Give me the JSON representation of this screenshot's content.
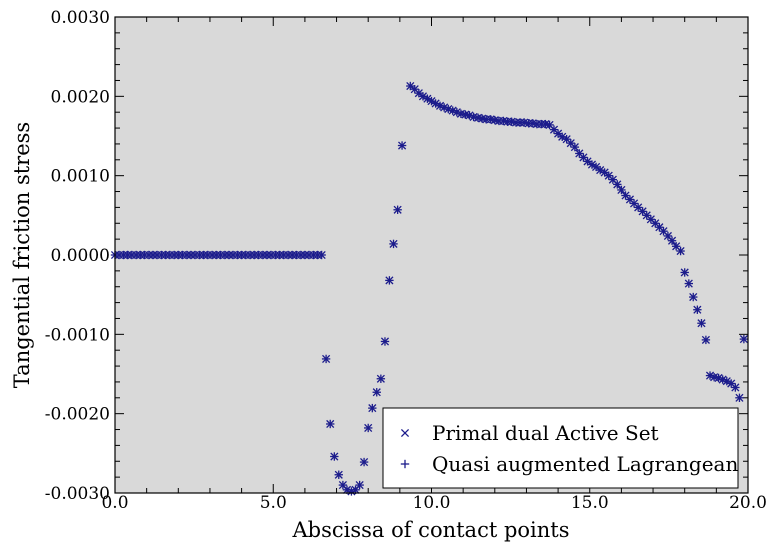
{
  "chart_data": {
    "type": "scatter",
    "xlabel": "Abscissa of contact points",
    "ylabel": "Tangential friction stress",
    "xlim": [
      0,
      20
    ],
    "ylim": [
      -0.003,
      0.003
    ],
    "xticks": [
      0,
      5,
      10,
      15,
      20
    ],
    "xtick_labels": [
      "0.0",
      "5.0",
      "10.0",
      "15.0",
      "20.0"
    ],
    "yticks": [
      -0.003,
      -0.002,
      -0.001,
      0.0,
      0.001,
      0.002,
      0.003
    ],
    "ytick_labels": [
      "-0.0030",
      "-0.0020",
      "-0.0010",
      "0.0000",
      "0.0010",
      "0.0020",
      "0.0030"
    ],
    "grid": false,
    "legend_position": "bottom-right",
    "plot_background": "#d9d9d9",
    "marker_color": "#1c1c8c",
    "series": [
      {
        "name": "Primal dual Active Set",
        "marker": "x",
        "points": [
          [
            0.0,
            0.0
          ],
          [
            0.13,
            0.0
          ],
          [
            0.27,
            0.0
          ],
          [
            0.4,
            0.0
          ],
          [
            0.53,
            0.0
          ],
          [
            0.67,
            0.0
          ],
          [
            0.8,
            0.0
          ],
          [
            0.93,
            0.0
          ],
          [
            1.07,
            0.0
          ],
          [
            1.2,
            0.0
          ],
          [
            1.33,
            0.0
          ],
          [
            1.47,
            0.0
          ],
          [
            1.6,
            0.0
          ],
          [
            1.73,
            0.0
          ],
          [
            1.87,
            0.0
          ],
          [
            2.0,
            0.0
          ],
          [
            2.13,
            0.0
          ],
          [
            2.27,
            0.0
          ],
          [
            2.4,
            0.0
          ],
          [
            2.53,
            0.0
          ],
          [
            2.67,
            0.0
          ],
          [
            2.8,
            0.0
          ],
          [
            2.93,
            0.0
          ],
          [
            3.07,
            0.0
          ],
          [
            3.2,
            0.0
          ],
          [
            3.33,
            0.0
          ],
          [
            3.47,
            0.0
          ],
          [
            3.6,
            0.0
          ],
          [
            3.73,
            0.0
          ],
          [
            3.87,
            0.0
          ],
          [
            4.0,
            0.0
          ],
          [
            4.13,
            0.0
          ],
          [
            4.27,
            0.0
          ],
          [
            4.4,
            0.0
          ],
          [
            4.53,
            0.0
          ],
          [
            4.67,
            0.0
          ],
          [
            4.8,
            0.0
          ],
          [
            4.93,
            0.0
          ],
          [
            5.07,
            0.0
          ],
          [
            5.2,
            0.0
          ],
          [
            5.33,
            0.0
          ],
          [
            5.47,
            0.0
          ],
          [
            5.6,
            0.0
          ],
          [
            5.73,
            0.0
          ],
          [
            5.87,
            0.0
          ],
          [
            6.0,
            0.0
          ],
          [
            6.13,
            0.0
          ],
          [
            6.27,
            0.0
          ],
          [
            6.4,
            0.0
          ],
          [
            6.53,
            0.0
          ],
          [
            6.67,
            -0.00131
          ],
          [
            6.8,
            -0.00213
          ],
          [
            6.93,
            -0.00254
          ],
          [
            7.07,
            -0.00277
          ],
          [
            7.2,
            -0.0029
          ],
          [
            7.33,
            -0.00296
          ],
          [
            7.47,
            -0.00298
          ],
          [
            7.6,
            -0.00296
          ],
          [
            7.73,
            -0.0029
          ],
          [
            7.87,
            -0.00261
          ],
          [
            8.0,
            -0.00218
          ],
          [
            8.13,
            -0.00193
          ],
          [
            8.27,
            -0.00173
          ],
          [
            8.4,
            -0.00156
          ],
          [
            8.53,
            -0.00109
          ],
          [
            8.67,
            -0.00032
          ],
          [
            8.8,
            0.00014
          ],
          [
            8.93,
            0.00057
          ],
          [
            9.07,
            0.00138
          ],
          [
            9.33,
            0.00213
          ],
          [
            9.47,
            0.00209
          ],
          [
            9.6,
            0.00204
          ],
          [
            9.73,
            0.002
          ],
          [
            9.87,
            0.00197
          ],
          [
            10.0,
            0.00194
          ],
          [
            10.13,
            0.00191
          ],
          [
            10.27,
            0.00188
          ],
          [
            10.4,
            0.00186
          ],
          [
            10.53,
            0.00184
          ],
          [
            10.67,
            0.00182
          ],
          [
            10.8,
            0.0018
          ],
          [
            10.93,
            0.00178
          ],
          [
            11.07,
            0.00177
          ],
          [
            11.2,
            0.00176
          ],
          [
            11.33,
            0.00174
          ],
          [
            11.47,
            0.00173
          ],
          [
            11.6,
            0.00172
          ],
          [
            11.73,
            0.00171
          ],
          [
            11.87,
            0.00171
          ],
          [
            12.0,
            0.0017
          ],
          [
            12.13,
            0.00169
          ],
          [
            12.27,
            0.00169
          ],
          [
            12.4,
            0.00168
          ],
          [
            12.53,
            0.00168
          ],
          [
            12.67,
            0.00167
          ],
          [
            12.8,
            0.00167
          ],
          [
            12.93,
            0.00167
          ],
          [
            13.07,
            0.00166
          ],
          [
            13.2,
            0.00166
          ],
          [
            13.33,
            0.00165
          ],
          [
            13.47,
            0.00165
          ],
          [
            13.6,
            0.00165
          ],
          [
            13.73,
            0.00164
          ],
          [
            13.87,
            0.00158
          ],
          [
            14.0,
            0.00153
          ],
          [
            14.13,
            0.00149
          ],
          [
            14.27,
            0.00146
          ],
          [
            14.4,
            0.00141
          ],
          [
            14.53,
            0.00136
          ],
          [
            14.67,
            0.00128
          ],
          [
            14.8,
            0.00123
          ],
          [
            14.93,
            0.00118
          ],
          [
            15.07,
            0.00114
          ],
          [
            15.2,
            0.00111
          ],
          [
            15.33,
            0.00107
          ],
          [
            15.47,
            0.00104
          ],
          [
            15.6,
            0.001
          ],
          [
            15.73,
            0.00095
          ],
          [
            15.87,
            0.00089
          ],
          [
            16.0,
            0.00082
          ],
          [
            16.13,
            0.00075
          ],
          [
            16.27,
            0.0007
          ],
          [
            16.4,
            0.00065
          ],
          [
            16.53,
            0.0006
          ],
          [
            16.67,
            0.00055
          ],
          [
            16.8,
            0.0005
          ],
          [
            16.93,
            0.00045
          ],
          [
            17.07,
            0.0004
          ],
          [
            17.2,
            0.00035
          ],
          [
            17.33,
            0.0003
          ],
          [
            17.47,
            0.00024
          ],
          [
            17.6,
            0.00018
          ],
          [
            17.73,
            0.00011
          ],
          [
            17.87,
            5e-05
          ],
          [
            18.0,
            -0.00022
          ],
          [
            18.13,
            -0.00036
          ],
          [
            18.27,
            -0.00053
          ],
          [
            18.4,
            -0.00069
          ],
          [
            18.53,
            -0.00086
          ],
          [
            18.67,
            -0.00107
          ],
          [
            18.8,
            -0.00152
          ],
          [
            18.93,
            -0.00154
          ],
          [
            19.07,
            -0.00155
          ],
          [
            19.2,
            -0.00157
          ],
          [
            19.33,
            -0.00159
          ],
          [
            19.47,
            -0.00162
          ],
          [
            19.6,
            -0.00167
          ],
          [
            19.73,
            -0.0018
          ],
          [
            19.87,
            -0.00106
          ]
        ]
      },
      {
        "name": "Quasi augmented Lagrangean",
        "marker": "+",
        "points": [
          [
            0.0,
            0.0
          ],
          [
            0.13,
            0.0
          ],
          [
            0.27,
            0.0
          ],
          [
            0.4,
            0.0
          ],
          [
            0.53,
            0.0
          ],
          [
            0.67,
            0.0
          ],
          [
            0.8,
            0.0
          ],
          [
            0.93,
            0.0
          ],
          [
            1.07,
            0.0
          ],
          [
            1.2,
            0.0
          ],
          [
            1.33,
            0.0
          ],
          [
            1.47,
            0.0
          ],
          [
            1.6,
            0.0
          ],
          [
            1.73,
            0.0
          ],
          [
            1.87,
            0.0
          ],
          [
            2.0,
            0.0
          ],
          [
            2.13,
            0.0
          ],
          [
            2.27,
            0.0
          ],
          [
            2.4,
            0.0
          ],
          [
            2.53,
            0.0
          ],
          [
            2.67,
            0.0
          ],
          [
            2.8,
            0.0
          ],
          [
            2.93,
            0.0
          ],
          [
            3.07,
            0.0
          ],
          [
            3.2,
            0.0
          ],
          [
            3.33,
            0.0
          ],
          [
            3.47,
            0.0
          ],
          [
            3.6,
            0.0
          ],
          [
            3.73,
            0.0
          ],
          [
            3.87,
            0.0
          ],
          [
            4.0,
            0.0
          ],
          [
            4.13,
            0.0
          ],
          [
            4.27,
            0.0
          ],
          [
            4.4,
            0.0
          ],
          [
            4.53,
            0.0
          ],
          [
            4.67,
            0.0
          ],
          [
            4.8,
            0.0
          ],
          [
            4.93,
            0.0
          ],
          [
            5.07,
            0.0
          ],
          [
            5.2,
            0.0
          ],
          [
            5.33,
            0.0
          ],
          [
            5.47,
            0.0
          ],
          [
            5.6,
            0.0
          ],
          [
            5.73,
            0.0
          ],
          [
            5.87,
            0.0
          ],
          [
            6.0,
            0.0
          ],
          [
            6.13,
            0.0
          ],
          [
            6.27,
            0.0
          ],
          [
            6.4,
            0.0
          ],
          [
            6.53,
            0.0
          ],
          [
            6.67,
            -0.00131
          ],
          [
            6.8,
            -0.00213
          ],
          [
            6.93,
            -0.00254
          ],
          [
            7.07,
            -0.00277
          ],
          [
            7.2,
            -0.0029
          ],
          [
            7.33,
            -0.00296
          ],
          [
            7.47,
            -0.00298
          ],
          [
            7.6,
            -0.00296
          ],
          [
            7.73,
            -0.0029
          ],
          [
            7.87,
            -0.00261
          ],
          [
            8.0,
            -0.00218
          ],
          [
            8.13,
            -0.00193
          ],
          [
            8.27,
            -0.00173
          ],
          [
            8.4,
            -0.00156
          ],
          [
            8.53,
            -0.00109
          ],
          [
            8.67,
            -0.00032
          ],
          [
            8.8,
            0.00014
          ],
          [
            8.93,
            0.00057
          ],
          [
            9.07,
            0.00138
          ],
          [
            9.33,
            0.00213
          ],
          [
            9.47,
            0.00209
          ],
          [
            9.6,
            0.00204
          ],
          [
            9.73,
            0.002
          ],
          [
            9.87,
            0.00197
          ],
          [
            10.0,
            0.00194
          ],
          [
            10.13,
            0.00191
          ],
          [
            10.27,
            0.00188
          ],
          [
            10.4,
            0.00186
          ],
          [
            10.53,
            0.00184
          ],
          [
            10.67,
            0.00182
          ],
          [
            10.8,
            0.0018
          ],
          [
            10.93,
            0.00178
          ],
          [
            11.07,
            0.00177
          ],
          [
            11.2,
            0.00176
          ],
          [
            11.33,
            0.00174
          ],
          [
            11.47,
            0.00173
          ],
          [
            11.6,
            0.00172
          ],
          [
            11.73,
            0.00171
          ],
          [
            11.87,
            0.00171
          ],
          [
            12.0,
            0.0017
          ],
          [
            12.13,
            0.00169
          ],
          [
            12.27,
            0.00169
          ],
          [
            12.4,
            0.00168
          ],
          [
            12.53,
            0.00168
          ],
          [
            12.67,
            0.00167
          ],
          [
            12.8,
            0.00167
          ],
          [
            12.93,
            0.00167
          ],
          [
            13.07,
            0.00166
          ],
          [
            13.2,
            0.00166
          ],
          [
            13.33,
            0.00165
          ],
          [
            13.47,
            0.00165
          ],
          [
            13.6,
            0.00165
          ],
          [
            13.73,
            0.00164
          ],
          [
            13.87,
            0.00158
          ],
          [
            14.0,
            0.00153
          ],
          [
            14.13,
            0.00149
          ],
          [
            14.27,
            0.00146
          ],
          [
            14.4,
            0.00141
          ],
          [
            14.53,
            0.00136
          ],
          [
            14.67,
            0.00128
          ],
          [
            14.8,
            0.00123
          ],
          [
            14.93,
            0.00118
          ],
          [
            15.07,
            0.00114
          ],
          [
            15.2,
            0.00111
          ],
          [
            15.33,
            0.00107
          ],
          [
            15.47,
            0.00104
          ],
          [
            15.6,
            0.001
          ],
          [
            15.73,
            0.00095
          ],
          [
            15.87,
            0.00089
          ],
          [
            16.0,
            0.00082
          ],
          [
            16.13,
            0.00075
          ],
          [
            16.27,
            0.0007
          ],
          [
            16.4,
            0.00065
          ],
          [
            16.53,
            0.0006
          ],
          [
            16.67,
            0.00055
          ],
          [
            16.8,
            0.0005
          ],
          [
            16.93,
            0.00045
          ],
          [
            17.07,
            0.0004
          ],
          [
            17.2,
            0.00035
          ],
          [
            17.33,
            0.0003
          ],
          [
            17.47,
            0.00024
          ],
          [
            17.6,
            0.00018
          ],
          [
            17.73,
            0.00011
          ],
          [
            17.87,
            5e-05
          ],
          [
            18.0,
            -0.00022
          ],
          [
            18.13,
            -0.00036
          ],
          [
            18.27,
            -0.00053
          ],
          [
            18.4,
            -0.00069
          ],
          [
            18.53,
            -0.00086
          ],
          [
            18.67,
            -0.00107
          ],
          [
            18.8,
            -0.00152
          ],
          [
            18.93,
            -0.00154
          ],
          [
            19.07,
            -0.00155
          ],
          [
            19.2,
            -0.00157
          ],
          [
            19.33,
            -0.00159
          ],
          [
            19.47,
            -0.00162
          ],
          [
            19.6,
            -0.00167
          ],
          [
            19.73,
            -0.0018
          ],
          [
            19.87,
            -0.00106
          ]
        ]
      }
    ]
  }
}
